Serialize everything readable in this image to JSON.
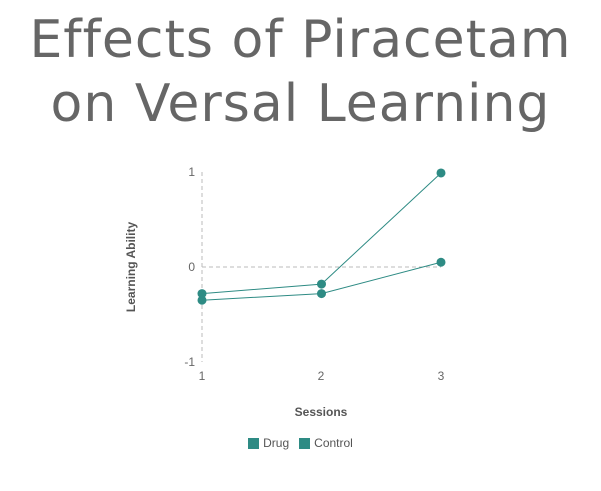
{
  "title_lines": [
    "Effects of Piracetam",
    "on Versal Learning"
  ],
  "chart_data": {
    "type": "line",
    "title": "Effects of Piracetam on Versal Learning",
    "xlabel": "Sessions",
    "ylabel": "Learning Ability",
    "x": [
      1,
      2,
      3
    ],
    "xlim": [
      1,
      3
    ],
    "ylim": [
      -1,
      1
    ],
    "xticks": [
      "1",
      "2",
      "3"
    ],
    "yticks": [
      "1",
      "0",
      "-1"
    ],
    "reference_line_y": 0,
    "legend_position": "bottom-center",
    "series": [
      {
        "name": "Drug",
        "values": [
          -0.28,
          -0.18,
          0.99
        ],
        "color": "#2e8b84"
      },
      {
        "name": "Control",
        "values": [
          -0.35,
          -0.28,
          0.05
        ],
        "color": "#2e8b84"
      }
    ]
  }
}
